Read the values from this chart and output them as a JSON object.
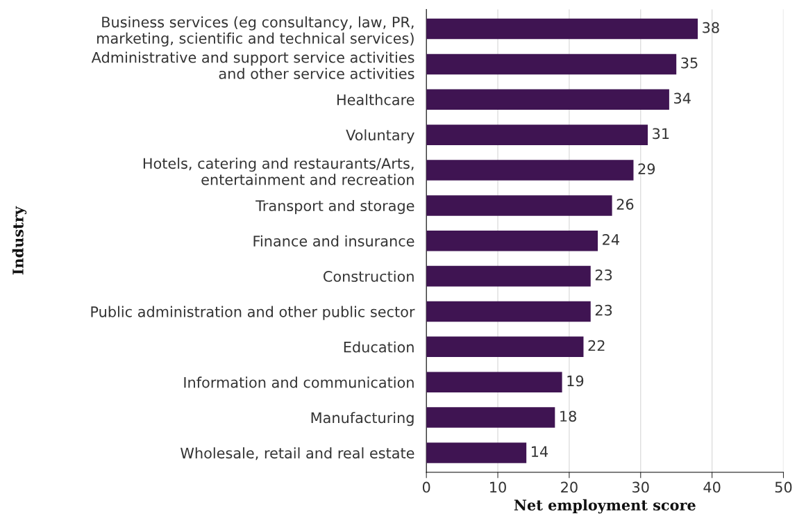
{
  "chart_data": {
    "type": "bar",
    "orientation": "horizontal",
    "xlabel": "Net employment score",
    "ylabel": "Industry",
    "categories": [
      "Business services (eg consultancy, law, PR,\nmarketing, scientific and technical services)",
      "Administrative and support service activities\nand other service activities",
      "Healthcare",
      "Voluntary",
      "Hotels, catering and restaurants/Arts,\nentertainment and recreation",
      "Transport and storage",
      "Finance and insurance",
      "Construction",
      "Public administration and other public sector",
      "Education",
      "Information and communication",
      "Manufacturing",
      "Wholesale, retail and real estate"
    ],
    "values": [
      38,
      35,
      34,
      31,
      29,
      26,
      24,
      23,
      23,
      22,
      19,
      18,
      14
    ],
    "color": "#3f1452",
    "xlim": [
      0,
      50
    ],
    "xticks": [
      0,
      10,
      20,
      30,
      40,
      50
    ],
    "grid": "x",
    "data_labels": true,
    "legend": false
  }
}
